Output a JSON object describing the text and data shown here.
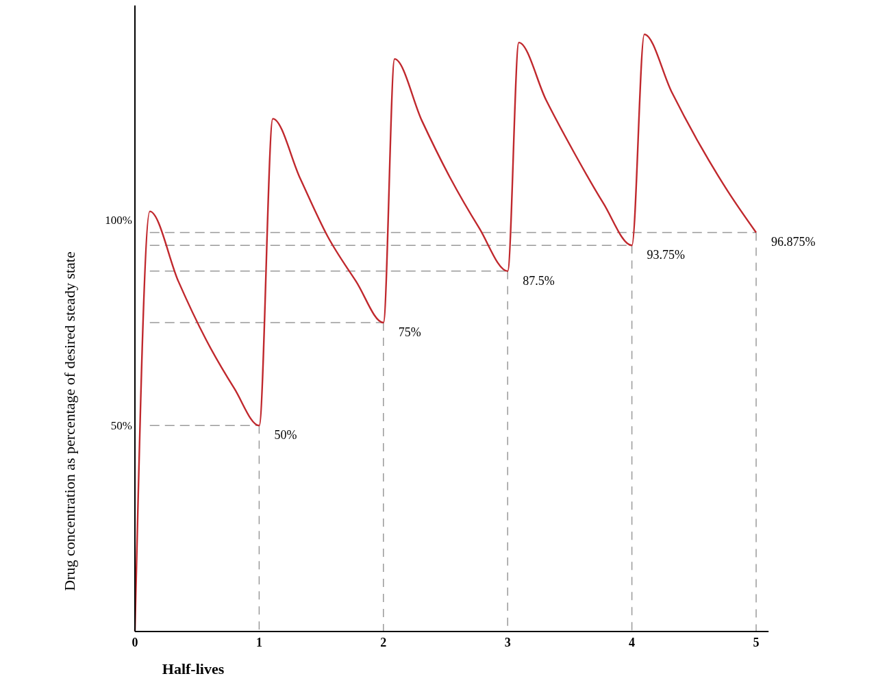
{
  "chart_data": {
    "type": "line",
    "xlabel": "Half-lives",
    "ylabel": "Drug concentration as percentage of desired steady state",
    "x": [
      0,
      0.12,
      0.35,
      0.57,
      0.8,
      1,
      1.11,
      1.33,
      1.55,
      1.78,
      2,
      2.09,
      2.31,
      2.54,
      2.77,
      3,
      3.09,
      3.31,
      3.54,
      3.77,
      4,
      4.1,
      4.32,
      4.55,
      4.77,
      5
    ],
    "series": [
      {
        "color": "#c0282d",
        "values": [
          0,
          102,
          85,
          71,
          59,
          50,
          124.5,
          110,
          96,
          85,
          75,
          139,
          124,
          110,
          98,
          87.5,
          143,
          129,
          116,
          104,
          93.75,
          145,
          131,
          118,
          107,
          96.875
        ]
      }
    ],
    "xlim": [
      0,
      5.1
    ],
    "ylim": [
      0,
      152
    ],
    "xticks": [
      0,
      1,
      2,
      3,
      4,
      5
    ],
    "yticks": [
      {
        "value": 50,
        "label": "50%"
      },
      {
        "value": 100,
        "label": "100%"
      }
    ],
    "ref_lines": [
      {
        "axis": "y",
        "value": 50,
        "color": "#999999",
        "line_style": "dashed"
      },
      {
        "axis": "y",
        "value": 75,
        "color": "#999999",
        "line_style": "dashed"
      },
      {
        "axis": "y",
        "value": 87.5,
        "color": "#999999",
        "line_style": "dashed"
      },
      {
        "axis": "y",
        "value": 93.75,
        "color": "#999999",
        "line_style": "dashed"
      },
      {
        "axis": "y",
        "value": 96.875,
        "color": "#999999",
        "line_style": "dashed"
      },
      {
        "axis": "x",
        "value": 1,
        "color": "#999999",
        "line_style": "dashed"
      },
      {
        "axis": "x",
        "value": 2,
        "color": "#999999",
        "line_style": "dashed"
      },
      {
        "axis": "x",
        "value": 3,
        "color": "#999999",
        "line_style": "dashed"
      },
      {
        "axis": "x",
        "value": 4,
        "color": "#999999",
        "line_style": "dashed"
      },
      {
        "axis": "x",
        "value": 5,
        "color": "#999999",
        "line_style": "dashed"
      }
    ],
    "annotations": [
      {
        "text": "50%",
        "x": 1,
        "y": 50
      },
      {
        "text": "75%",
        "x": 2,
        "y": 75
      },
      {
        "text": "87.5%",
        "x": 3,
        "y": 87.5
      },
      {
        "text": "93.75%",
        "x": 4,
        "y": 93.75
      },
      {
        "text": "96.875%",
        "x": 5,
        "y": 96.875
      }
    ],
    "grid": false,
    "marker": "none",
    "line_style": "solid"
  }
}
